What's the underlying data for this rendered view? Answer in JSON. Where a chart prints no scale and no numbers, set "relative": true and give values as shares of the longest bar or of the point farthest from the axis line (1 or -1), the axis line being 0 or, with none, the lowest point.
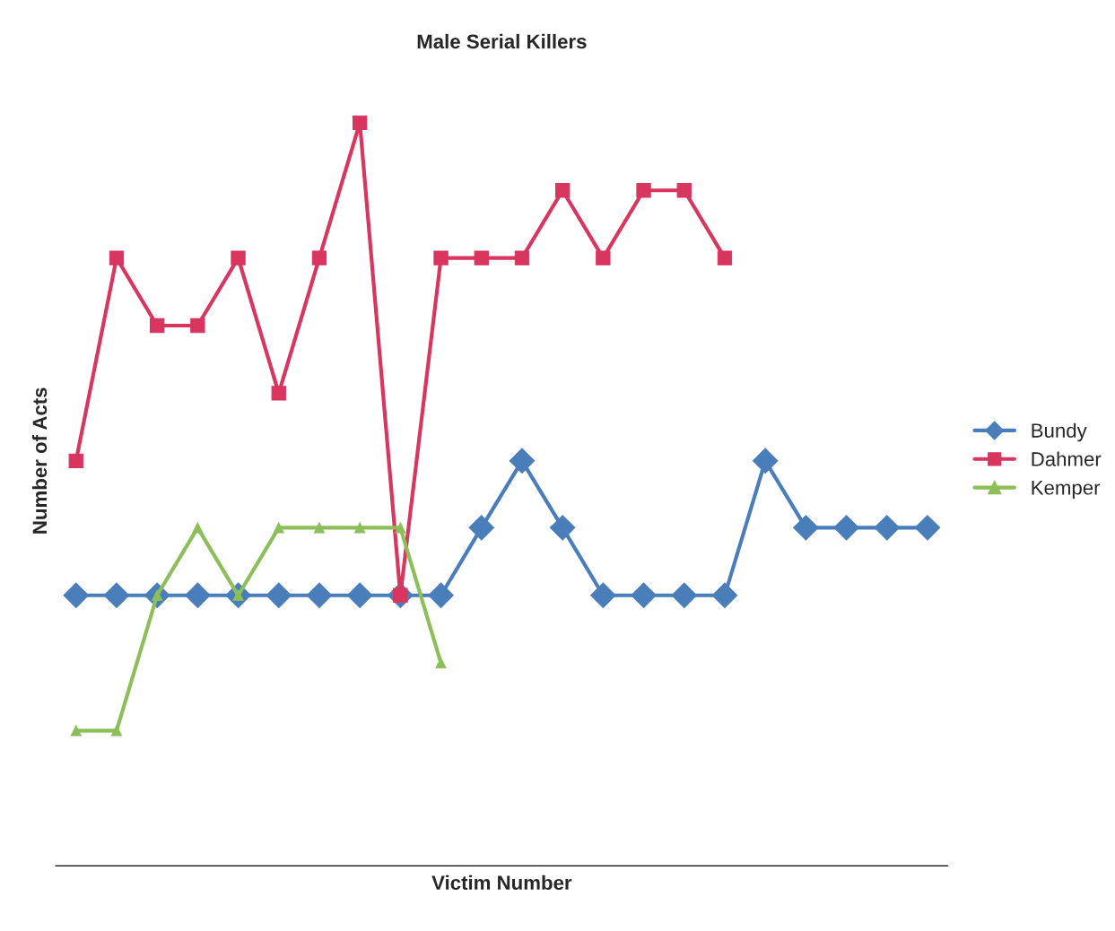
{
  "chart_data": {
    "type": "line",
    "title": "Male Serial Killers",
    "xlabel": "Victim Number",
    "ylabel": "Number of Acts",
    "relative": true,
    "legend": "right",
    "categories": [
      null,
      null,
      null,
      null,
      null,
      null,
      null,
      null,
      null,
      null,
      null,
      null,
      null,
      null,
      null,
      null,
      null,
      null,
      null,
      null,
      null,
      null
    ],
    "series": [
      {
        "name": "Bundy",
        "color": "#4a7ebb",
        "marker": "diamond",
        "values": [
          0.364,
          0.364,
          0.364,
          0.364,
          0.364,
          0.364,
          0.364,
          0.364,
          0.364,
          0.364,
          0.455,
          0.545,
          0.455,
          0.364,
          0.364,
          0.364,
          0.364,
          0.545,
          0.455,
          0.455,
          0.455,
          0.455
        ]
      },
      {
        "name": "Dahmer",
        "color": "#d8355f",
        "marker": "square",
        "values": [
          0.545,
          0.818,
          0.727,
          0.727,
          0.818,
          0.636,
          0.818,
          1,
          0.364,
          0.818,
          0.818,
          0.818,
          0.909,
          0.818,
          0.909,
          0.909,
          0.818,
          null,
          null,
          null,
          null,
          null
        ]
      },
      {
        "name": "Kemper",
        "color": "#8cbf5a",
        "marker": "triangle",
        "values": [
          0.182,
          0.182,
          0.364,
          0.455,
          0.364,
          0.455,
          0.455,
          0.455,
          0.455,
          0.273,
          null,
          null,
          null,
          null,
          null,
          null,
          null,
          null,
          null,
          null,
          null,
          null
        ]
      }
    ]
  }
}
